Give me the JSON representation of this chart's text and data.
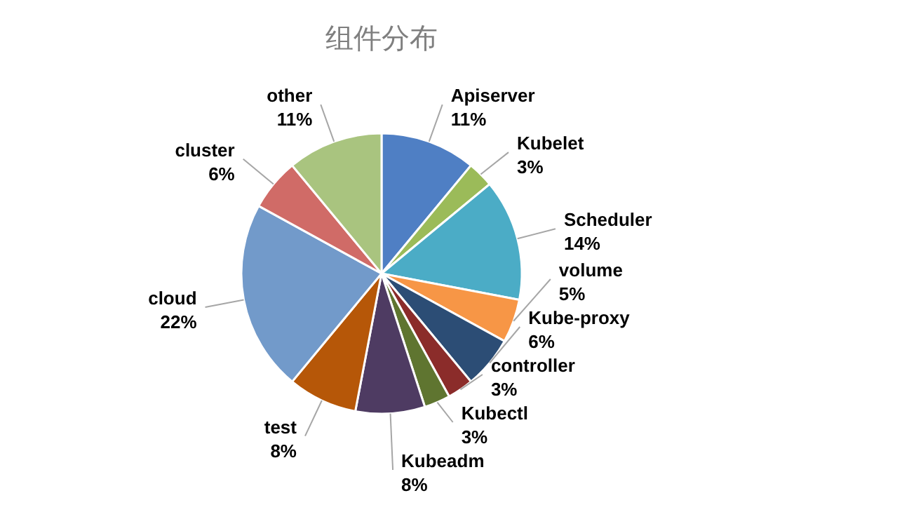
{
  "chart_data": {
    "type": "pie",
    "title": "组件分布",
    "categories": [
      "Apiserver",
      "Kubelet",
      "Scheduler",
      "volume",
      "Kube-proxy",
      "controller",
      "Kubectl",
      "Kubeadm",
      "test",
      "cloud",
      "cluster",
      "other"
    ],
    "values": [
      11,
      3,
      14,
      5,
      6,
      3,
      3,
      8,
      8,
      22,
      6,
      11
    ],
    "value_labels": [
      "11%",
      "3%",
      "14%",
      "5%",
      "6%",
      "3%",
      "3%",
      "8%",
      "8%",
      "22%",
      "6%",
      "11%"
    ],
    "colors": [
      "#4f7fc4",
      "#9bbb59",
      "#4bacc6",
      "#f79646",
      "#2c4d75",
      "#8b2c2a",
      "#5f7530",
      "#4e3b62",
      "#b65708",
      "#729aca",
      "#d06b67",
      "#a9c47f"
    ]
  }
}
